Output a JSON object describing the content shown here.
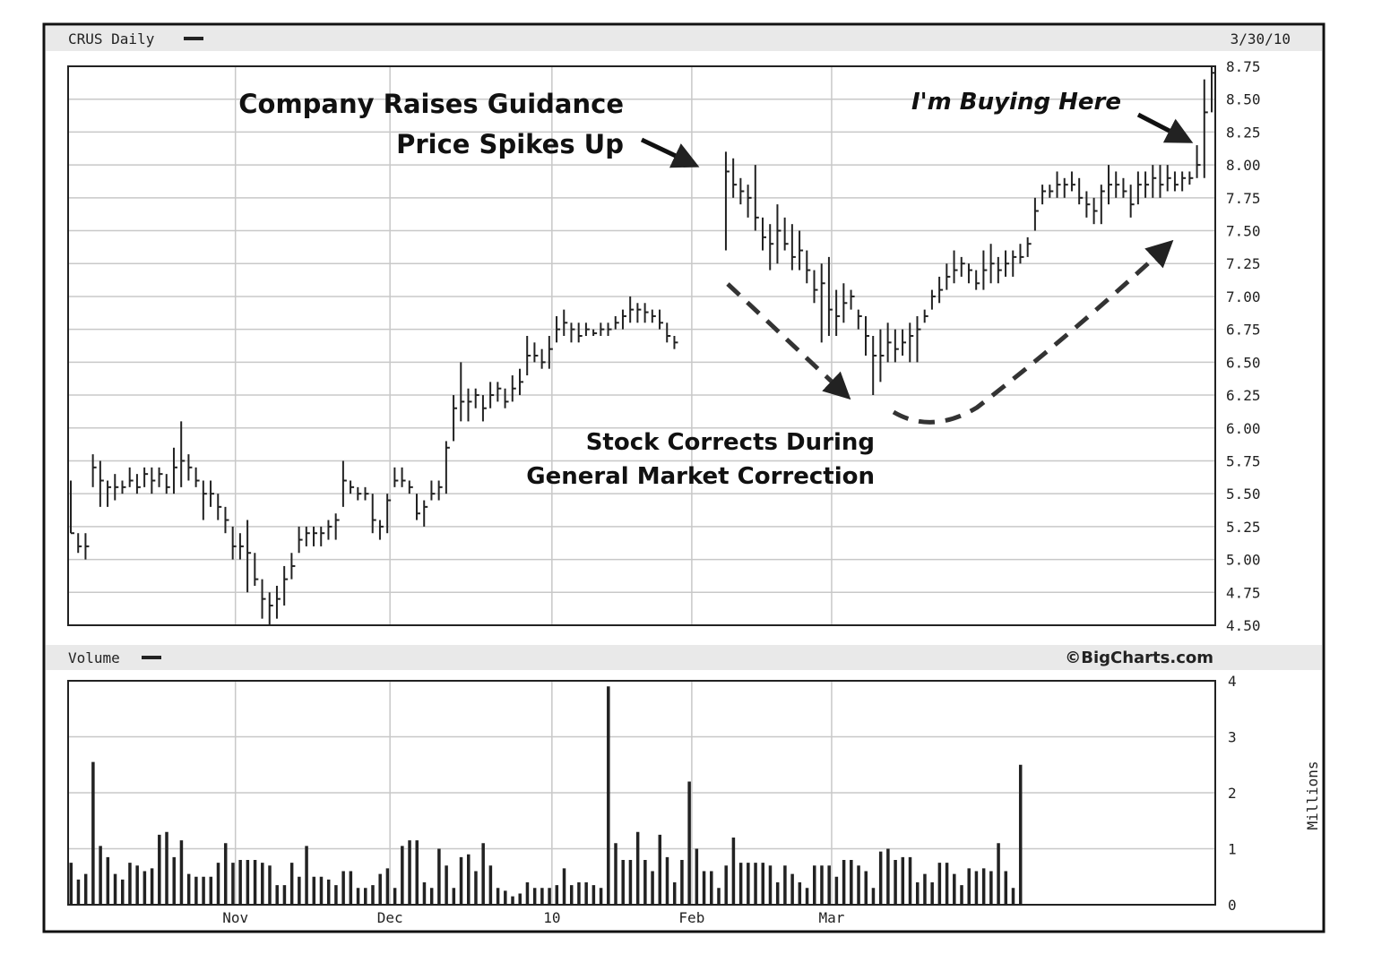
{
  "header": {
    "ticker_label": "CRUS Daily",
    "date": "3/30/10",
    "volume_label": "Volume",
    "watermark": "©BigCharts.com",
    "volume_unit": "Millions"
  },
  "annotations": {
    "guidance_line1": "Company Raises Guidance",
    "guidance_line2": "Price Spikes Up",
    "buying": "I'm Buying Here",
    "correction_line1": "Stock Corrects During",
    "correction_line2": "General Market Correction"
  },
  "chart_data": [
    {
      "type": "ohlc",
      "name": "CRUS Daily",
      "ylim": [
        4.5,
        8.75
      ],
      "y_ticks": [
        "8.75",
        "8.50",
        "8.25",
        "8.00",
        "7.75",
        "7.50",
        "7.25",
        "7.00",
        "6.75",
        "6.50",
        "6.25",
        "6.00",
        "5.75",
        "5.50",
        "5.25",
        "5.00",
        "4.75",
        "4.50"
      ],
      "x_tick_labels": [
        "Nov",
        "Dec",
        "10",
        "Feb",
        "Mar"
      ],
      "grid": true,
      "bars_hlc": [
        [
          5.6,
          5.2,
          5.2
        ],
        [
          5.2,
          5.05,
          5.1
        ],
        [
          5.2,
          5.0,
          5.1
        ],
        [
          5.8,
          5.55,
          5.7
        ],
        [
          5.75,
          5.4,
          5.6
        ],
        [
          5.6,
          5.4,
          5.55
        ],
        [
          5.65,
          5.45,
          5.55
        ],
        [
          5.6,
          5.5,
          5.55
        ],
        [
          5.7,
          5.55,
          5.6
        ],
        [
          5.65,
          5.5,
          5.55
        ],
        [
          5.7,
          5.55,
          5.65
        ],
        [
          5.7,
          5.5,
          5.6
        ],
        [
          5.7,
          5.55,
          5.65
        ],
        [
          5.65,
          5.5,
          5.55
        ],
        [
          5.85,
          5.5,
          5.7
        ],
        [
          6.05,
          5.55,
          5.75
        ],
        [
          5.8,
          5.6,
          5.7
        ],
        [
          5.7,
          5.55,
          5.6
        ],
        [
          5.6,
          5.3,
          5.5
        ],
        [
          5.6,
          5.4,
          5.5
        ],
        [
          5.5,
          5.3,
          5.4
        ],
        [
          5.4,
          5.2,
          5.3
        ],
        [
          5.25,
          5.0,
          5.1
        ],
        [
          5.2,
          5.0,
          5.1
        ],
        [
          5.3,
          4.75,
          5.05
        ],
        [
          5.05,
          4.8,
          4.85
        ],
        [
          4.85,
          4.55,
          4.7
        ],
        [
          4.75,
          4.5,
          4.65
        ],
        [
          4.8,
          4.55,
          4.7
        ],
        [
          4.95,
          4.65,
          4.85
        ],
        [
          5.05,
          4.85,
          4.95
        ],
        [
          5.25,
          5.05,
          5.15
        ],
        [
          5.25,
          5.1,
          5.2
        ],
        [
          5.25,
          5.1,
          5.2
        ],
        [
          5.25,
          5.1,
          5.2
        ],
        [
          5.3,
          5.15,
          5.25
        ],
        [
          5.35,
          5.15,
          5.3
        ],
        [
          5.75,
          5.4,
          5.6
        ],
        [
          5.6,
          5.5,
          5.55
        ],
        [
          5.55,
          5.45,
          5.5
        ],
        [
          5.55,
          5.45,
          5.5
        ],
        [
          5.5,
          5.2,
          5.3
        ],
        [
          5.3,
          5.15,
          5.25
        ],
        [
          5.5,
          5.2,
          5.45
        ],
        [
          5.7,
          5.55,
          5.6
        ],
        [
          5.7,
          5.55,
          5.6
        ],
        [
          5.6,
          5.5,
          5.55
        ],
        [
          5.5,
          5.3,
          5.35
        ],
        [
          5.45,
          5.25,
          5.4
        ],
        [
          5.6,
          5.45,
          5.5
        ],
        [
          5.6,
          5.45,
          5.55
        ],
        [
          5.9,
          5.5,
          5.85
        ],
        [
          6.25,
          5.9,
          6.15
        ],
        [
          6.5,
          6.05,
          6.2
        ],
        [
          6.3,
          6.05,
          6.2
        ],
        [
          6.3,
          6.15,
          6.25
        ],
        [
          6.25,
          6.05,
          6.15
        ],
        [
          6.35,
          6.15,
          6.25
        ],
        [
          6.35,
          6.2,
          6.3
        ],
        [
          6.3,
          6.15,
          6.2
        ],
        [
          6.4,
          6.2,
          6.3
        ],
        [
          6.45,
          6.25,
          6.35
        ],
        [
          6.7,
          6.4,
          6.55
        ],
        [
          6.65,
          6.5,
          6.55
        ],
        [
          6.6,
          6.45,
          6.5
        ],
        [
          6.7,
          6.45,
          6.6
        ],
        [
          6.85,
          6.65,
          6.75
        ],
        [
          6.9,
          6.7,
          6.8
        ],
        [
          6.8,
          6.65,
          6.75
        ],
        [
          6.8,
          6.65,
          6.7
        ],
        [
          6.8,
          6.7,
          6.75
        ],
        [
          6.75,
          6.7,
          6.72
        ],
        [
          6.8,
          6.7,
          6.75
        ],
        [
          6.8,
          6.7,
          6.75
        ],
        [
          6.85,
          6.75,
          6.8
        ],
        [
          6.9,
          6.75,
          6.85
        ],
        [
          7.0,
          6.8,
          6.9
        ],
        [
          6.95,
          6.8,
          6.9
        ],
        [
          6.95,
          6.8,
          6.88
        ],
        [
          6.9,
          6.8,
          6.85
        ],
        [
          6.9,
          6.75,
          6.8
        ],
        [
          6.8,
          6.65,
          6.7
        ],
        [
          6.7,
          6.6,
          6.65
        ],
        null,
        null,
        null,
        null,
        null,
        null,
        [
          8.1,
          7.35,
          7.95
        ],
        [
          8.05,
          7.75,
          7.85
        ],
        [
          7.9,
          7.7,
          7.8
        ],
        [
          7.85,
          7.6,
          7.75
        ],
        [
          8.0,
          7.5,
          7.6
        ],
        [
          7.6,
          7.35,
          7.45
        ],
        [
          7.55,
          7.2,
          7.4
        ],
        [
          7.7,
          7.25,
          7.5
        ],
        [
          7.6,
          7.35,
          7.4
        ],
        [
          7.55,
          7.2,
          7.3
        ],
        [
          7.5,
          7.2,
          7.35
        ],
        [
          7.35,
          7.1,
          7.2
        ],
        [
          7.2,
          6.95,
          7.05
        ],
        [
          7.25,
          6.65,
          7.1
        ],
        [
          7.3,
          6.7,
          6.9
        ],
        [
          7.05,
          6.7,
          6.85
        ],
        [
          7.1,
          6.8,
          6.95
        ],
        [
          7.05,
          6.9,
          7.0
        ],
        [
          6.9,
          6.75,
          6.85
        ],
        [
          6.85,
          6.55,
          6.7
        ],
        [
          6.7,
          6.25,
          6.55
        ],
        [
          6.75,
          6.35,
          6.55
        ],
        [
          6.8,
          6.5,
          6.65
        ],
        [
          6.75,
          6.5,
          6.6
        ],
        [
          6.75,
          6.55,
          6.65
        ],
        [
          6.8,
          6.5,
          6.7
        ],
        [
          6.85,
          6.5,
          6.75
        ],
        [
          6.9,
          6.8,
          6.85
        ],
        [
          7.05,
          6.9,
          7.0
        ],
        [
          7.15,
          6.95,
          7.05
        ],
        [
          7.25,
          7.05,
          7.15
        ],
        [
          7.35,
          7.1,
          7.2
        ],
        [
          7.3,
          7.15,
          7.25
        ],
        [
          7.25,
          7.1,
          7.2
        ],
        [
          7.2,
          7.05,
          7.1
        ],
        [
          7.35,
          7.05,
          7.2
        ],
        [
          7.4,
          7.1,
          7.25
        ],
        [
          7.3,
          7.1,
          7.2
        ],
        [
          7.35,
          7.15,
          7.25
        ],
        [
          7.35,
          7.15,
          7.3
        ],
        [
          7.4,
          7.25,
          7.3
        ],
        [
          7.45,
          7.3,
          7.4
        ],
        [
          7.75,
          7.5,
          7.65
        ],
        [
          7.85,
          7.7,
          7.8
        ],
        [
          7.85,
          7.75,
          7.8
        ],
        [
          7.95,
          7.75,
          7.85
        ],
        [
          7.9,
          7.75,
          7.85
        ],
        [
          7.95,
          7.8,
          7.85
        ],
        [
          7.9,
          7.7,
          7.75
        ],
        [
          7.8,
          7.6,
          7.7
        ],
        [
          7.75,
          7.55,
          7.65
        ],
        [
          7.85,
          7.55,
          7.8
        ],
        [
          8.0,
          7.7,
          7.85
        ],
        [
          7.95,
          7.75,
          7.85
        ],
        [
          7.9,
          7.75,
          7.8
        ],
        [
          7.85,
          7.6,
          7.7
        ],
        [
          7.95,
          7.7,
          7.85
        ],
        [
          7.95,
          7.75,
          7.85
        ],
        [
          8.0,
          7.75,
          7.9
        ],
        [
          8.0,
          7.75,
          7.85
        ],
        [
          8.0,
          7.8,
          7.9
        ],
        [
          7.95,
          7.8,
          7.85
        ],
        [
          7.95,
          7.8,
          7.9
        ],
        [
          7.95,
          7.85,
          7.9
        ],
        [
          8.15,
          7.9,
          8.0
        ],
        [
          8.65,
          7.9,
          8.4
        ],
        [
          8.75,
          8.4,
          8.7
        ]
      ]
    },
    {
      "type": "bar",
      "name": "Volume",
      "ylim": [
        0,
        4
      ],
      "y_ticks": [
        "4",
        "3",
        "2",
        "1",
        "0"
      ],
      "ylabel": "Millions",
      "values": [
        0.75,
        0.45,
        0.55,
        2.55,
        1.05,
        0.85,
        0.55,
        0.45,
        0.75,
        0.7,
        0.6,
        0.65,
        1.25,
        1.3,
        0.85,
        1.15,
        0.55,
        0.5,
        0.5,
        0.5,
        0.75,
        1.1,
        0.75,
        0.8,
        0.8,
        0.8,
        0.75,
        0.7,
        0.35,
        0.35,
        0.75,
        0.5,
        1.05,
        0.5,
        0.5,
        0.45,
        0.35,
        0.6,
        0.6,
        0.3,
        0.3,
        0.35,
        0.55,
        0.65,
        0.3,
        1.05,
        1.15,
        1.15,
        0.4,
        0.3,
        1.0,
        0.7,
        0.3,
        0.85,
        0.9,
        0.6,
        1.1,
        0.7,
        0.3,
        0.25,
        0.15,
        0.2,
        0.4,
        0.3,
        0.3,
        0.3,
        0.35,
        0.65,
        0.35,
        0.4,
        0.4,
        0.35,
        0.3,
        3.9,
        1.1,
        0.8,
        0.8,
        1.3,
        0.8,
        0.6,
        1.25,
        0.85,
        0.4,
        0.8,
        2.2,
        1.0,
        0.6,
        0.6,
        0.3,
        0.7,
        1.2,
        0.75,
        0.75,
        0.75,
        0.75,
        0.7,
        0.4,
        0.7,
        0.55,
        0.4,
        0.3,
        0.7,
        0.7,
        0.7,
        0.5,
        0.8,
        0.8,
        0.7,
        0.6,
        0.3,
        0.95,
        1.0,
        0.8,
        0.85,
        0.85,
        0.4,
        0.55,
        0.4,
        0.75,
        0.75,
        0.55,
        0.35,
        0.65,
        0.6,
        0.65,
        0.6,
        1.1,
        0.6,
        0.3,
        2.5
      ]
    }
  ],
  "colors": {
    "frame": "#111111",
    "grid": "#c8c8c8",
    "bar": "#222222",
    "header_band": "#e9e9e9"
  }
}
